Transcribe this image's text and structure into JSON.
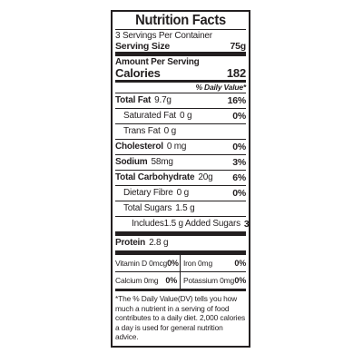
{
  "label": {
    "title": "Nutrition Facts",
    "servings_per_container": "3 Servings Per Container",
    "serving_size_label": "Serving Size",
    "serving_size_value": "75g",
    "amount_per_serving": "Amount Per Serving",
    "calories_label": "Calories",
    "calories_value": "182",
    "daily_value_header": "% Daily Value*",
    "nutrients": [
      {
        "name": "Total Fat",
        "amount": "9.7g",
        "dv": "16%"
      },
      {
        "name": "Saturated Fat",
        "amount": "0 g",
        "dv": "0%"
      },
      {
        "name": "Trans Fat",
        "amount": "0 g",
        "dv": ""
      },
      {
        "name": "Cholesterol",
        "amount": "0 mg",
        "dv": "0%"
      },
      {
        "name": "Sodium",
        "amount": "58mg",
        "dv": "3%"
      },
      {
        "name": "Total Carbohydrate",
        "amount": "20g",
        "dv": "6%"
      },
      {
        "name": "Dietary Fibre",
        "amount": "0 g",
        "dv": "0%"
      },
      {
        "name": "Total Sugars",
        "amount": "1.5 g",
        "dv": ""
      },
      {
        "name": "Includes1.5 g Added Sugars",
        "amount": "",
        "dv": "3%"
      },
      {
        "name": "Protein",
        "amount": "2.8 g",
        "dv": ""
      }
    ],
    "vitamins": [
      {
        "left_name": "Vitamin D",
        "left_amount": "0mcg",
        "left_dv": "0%",
        "right_name": "Iron",
        "right_amount": "0mg",
        "right_dv": "0%"
      },
      {
        "left_name": "Calcium",
        "left_amount": "0mg",
        "left_dv": "0%",
        "right_name": "Potassium",
        "right_amount": "0mg",
        "right_dv": "0%"
      }
    ],
    "footnote": "*The % Daily Value(DV) tells you how much a nutrient in a serving of food contributes to a daily diet. 2,000 calories a day is used for general nutrition advice."
  }
}
